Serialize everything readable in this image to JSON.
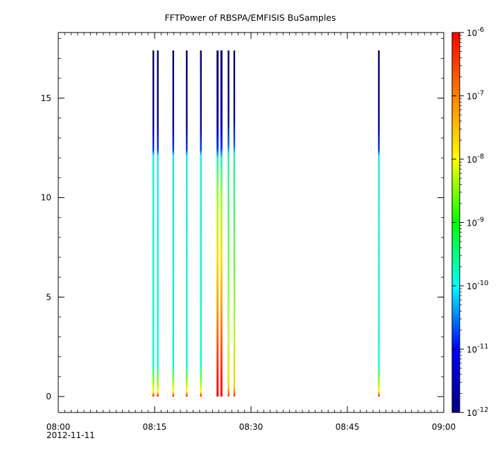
{
  "chart_data": {
    "type": "heatmap",
    "title": "FFTPower of RBSPA/EMFISIS  BuSamples",
    "xlabel": "",
    "ylabel": "",
    "x_axis": {
      "range_minutes": [
        0,
        60
      ],
      "date_label": "2012-11-11",
      "ticks": [
        {
          "minute": 0,
          "label": "08:00"
        },
        {
          "minute": 15,
          "label": "08:15"
        },
        {
          "minute": 30,
          "label": "08:30"
        },
        {
          "minute": 45,
          "label": "08:45"
        },
        {
          "minute": 60,
          "label": "09:00"
        }
      ],
      "minor_tick_step_minutes": 1
    },
    "y_axis": {
      "range": [
        -0.8,
        18.3
      ],
      "ticks": [
        0,
        5,
        10,
        15
      ]
    },
    "colorbar": {
      "scale": "log",
      "range_exp": [
        -12,
        -6
      ],
      "ticks": [
        {
          "exp": -6,
          "base": "10",
          "sup": "-6"
        },
        {
          "exp": -7,
          "base": "10",
          "sup": "-7"
        },
        {
          "exp": -8,
          "base": "10",
          "sup": "-8"
        },
        {
          "exp": -9,
          "base": "10",
          "sup": "-9"
        },
        {
          "exp": -10,
          "base": "10",
          "sup": "-10"
        },
        {
          "exp": -11,
          "base": "10",
          "sup": "-11"
        },
        {
          "exp": -12,
          "base": "10",
          "sup": "-12"
        }
      ],
      "colors": [
        "#00007f",
        "#0000ff",
        "#00ffff",
        "#00ff00",
        "#ffff00",
        "#ff7f00",
        "#ff0000"
      ]
    },
    "bursts": [
      {
        "minute": 14.8,
        "ymax": 17.4,
        "profile": "normal"
      },
      {
        "minute": 15.5,
        "ymax": 17.4,
        "profile": "normal"
      },
      {
        "minute": 17.9,
        "ymax": 17.4,
        "profile": "normal"
      },
      {
        "minute": 20.0,
        "ymax": 17.4,
        "profile": "normal"
      },
      {
        "minute": 22.2,
        "ymax": 17.4,
        "profile": "normal"
      },
      {
        "minute": 24.8,
        "ymax": 17.4,
        "profile": "intense"
      },
      {
        "minute": 25.4,
        "ymax": 17.4,
        "profile": "intense"
      },
      {
        "minute": 26.5,
        "ymax": 17.4,
        "profile": "active"
      },
      {
        "minute": 27.4,
        "ymax": 17.4,
        "profile": "active"
      },
      {
        "minute": 49.9,
        "ymax": 17.4,
        "profile": "normal"
      }
    ]
  }
}
